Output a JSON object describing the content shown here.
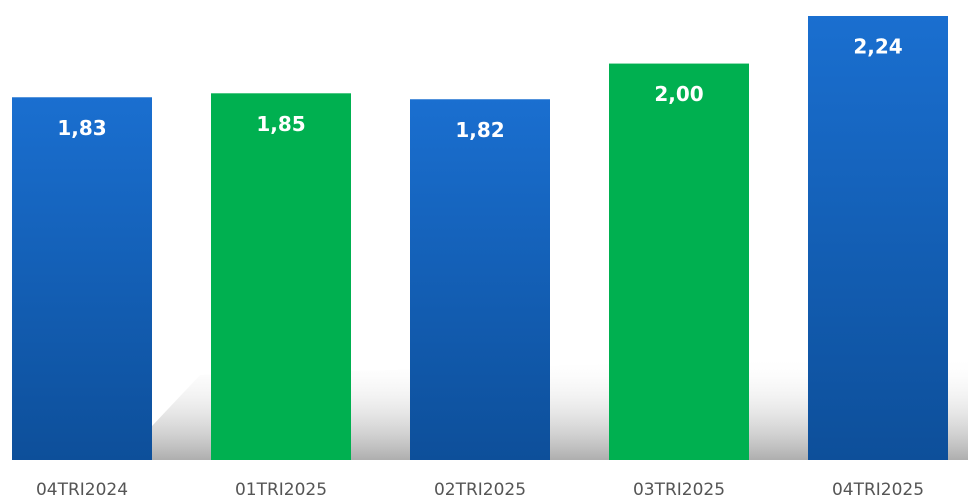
{
  "chart_data": {
    "type": "bar",
    "categories": [
      "04TRI2024",
      "01TRI2025",
      "02TRI2025",
      "03TRI2025",
      "04TRI2025"
    ],
    "values": [
      1.83,
      1.85,
      1.82,
      2.0,
      2.24
    ],
    "value_labels": [
      "1,83",
      "1,85",
      "1,82",
      "2,00",
      "2,24"
    ],
    "colors": [
      "#1565c0",
      "#00b050",
      "#1565c0",
      "#00b050",
      "#1565c0"
    ]
  }
}
